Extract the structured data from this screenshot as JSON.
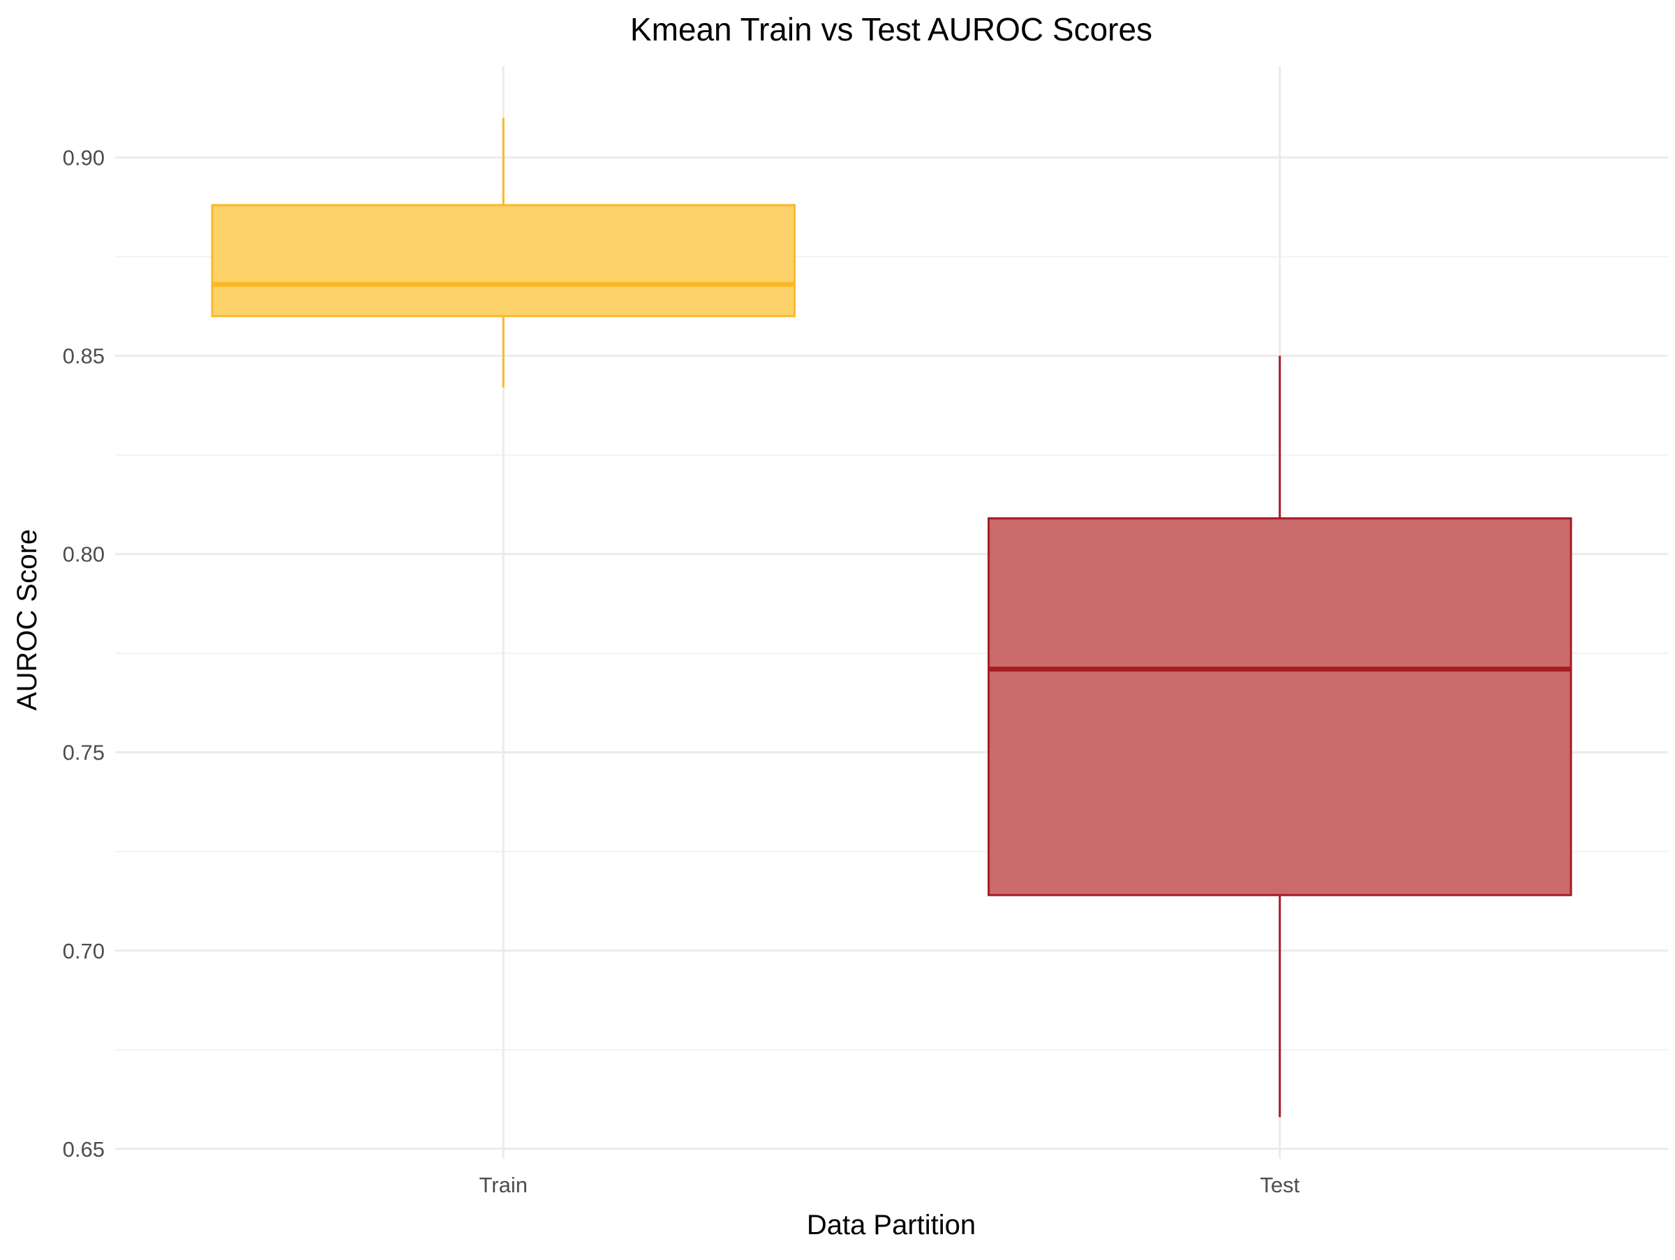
{
  "chart_data": {
    "type": "boxplot",
    "title": "Kmean Train vs Test AUROC Scores",
    "xlabel": "Data Partition",
    "ylabel": "AUROC Score",
    "ylim": [
      0.6475,
      0.923
    ],
    "yticks": [
      0.65,
      0.7,
      0.75,
      0.8,
      0.85,
      0.9
    ],
    "ytick_labels": [
      "0.65",
      "0.70",
      "0.75",
      "0.80",
      "0.85",
      "0.90"
    ],
    "categories": [
      "Train",
      "Test"
    ],
    "grid": true,
    "legend": "none",
    "boxes": [
      {
        "category": "Train",
        "min": 0.842,
        "q1": 0.86,
        "median": 0.868,
        "q3": 0.888,
        "max": 0.91,
        "color": "#FBB829",
        "fill": "#FDD062"
      },
      {
        "category": "Test",
        "min": 0.658,
        "q1": 0.714,
        "median": 0.771,
        "q3": 0.809,
        "max": 0.85,
        "color": "#A51C24",
        "fill": "#C86364"
      }
    ]
  }
}
